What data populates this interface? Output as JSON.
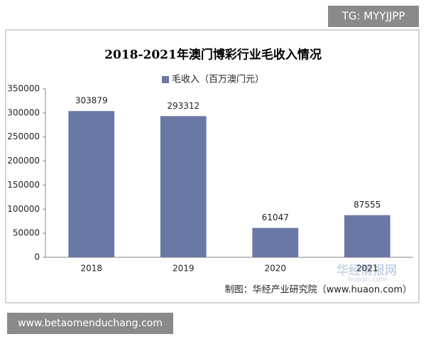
{
  "chart_data": {
    "type": "bar",
    "title": "2018-2021年澳门博彩行业毛收入情况",
    "series": [
      {
        "name": "毛收入（百万澳门元）",
        "color": "#6a78a6",
        "values": [
          303879,
          293312,
          61047,
          87555
        ]
      }
    ],
    "categories": [
      "2018",
      "2019",
      "2020",
      "2021"
    ],
    "ylim": [
      0,
      350000
    ],
    "yticks": [
      0,
      50000,
      100000,
      150000,
      200000,
      250000,
      300000,
      350000
    ],
    "grid": false,
    "legend": "top",
    "source": "制图：华经产业研究院（www.huaon.com）"
  },
  "watermarks": {
    "top_right": "TG: MYYJJPP",
    "bottom_left": "www.betaomenduchang.com",
    "logo": "华经情报网",
    "logo_url": "huaon.com"
  }
}
